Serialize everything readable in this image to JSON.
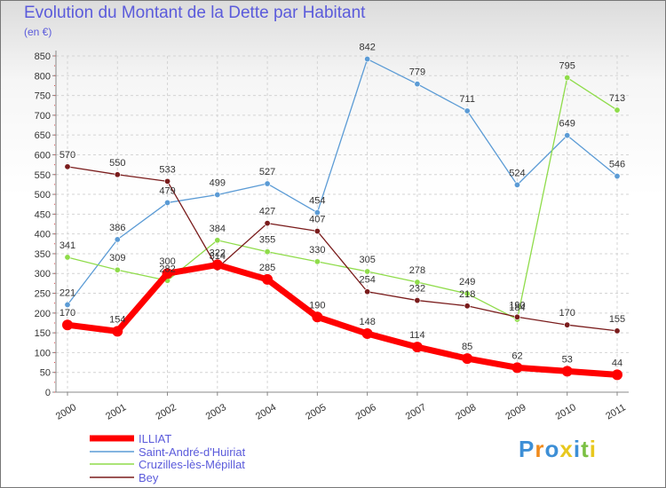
{
  "title": "Evolution du Montant de la Dette par Habitant",
  "unit": "(en €)",
  "logo": "Proxiti",
  "chart_data": {
    "type": "line",
    "title": "Evolution du Montant de la Dette par Habitant",
    "ylabel": "(en €)",
    "ylim": [
      0,
      850
    ],
    "yticks": [
      0,
      50,
      100,
      150,
      200,
      250,
      300,
      350,
      400,
      450,
      500,
      550,
      600,
      650,
      700,
      750,
      800,
      850
    ],
    "categories": [
      "2000",
      "2001",
      "2002",
      "2003",
      "2004",
      "2005",
      "2006",
      "2007",
      "2008",
      "2009",
      "2010",
      "2011"
    ],
    "grid": true,
    "legend": "bottom",
    "series": [
      {
        "name": "ILLIAT",
        "color": "#ff0000",
        "values": [
          170,
          154,
          300,
          322,
          285,
          190,
          148,
          114,
          85,
          62,
          53,
          44
        ]
      },
      {
        "name": "Saint-André-d'Huiriat",
        "color": "#5b9bd5",
        "values": [
          221,
          386,
          479,
          499,
          527,
          454,
          842,
          779,
          711,
          524,
          649,
          546
        ]
      },
      {
        "name": "Cruzilles-lès-Mépillat",
        "color": "#8fdc4a",
        "values": [
          341,
          309,
          282,
          384,
          355,
          330,
          305,
          278,
          249,
          184,
          795,
          713
        ]
      },
      {
        "name": "Bey",
        "color": "#7a1c1c",
        "values": [
          570,
          550,
          533,
          314,
          427,
          407,
          254,
          232,
          218,
          190,
          170,
          155
        ]
      }
    ]
  }
}
